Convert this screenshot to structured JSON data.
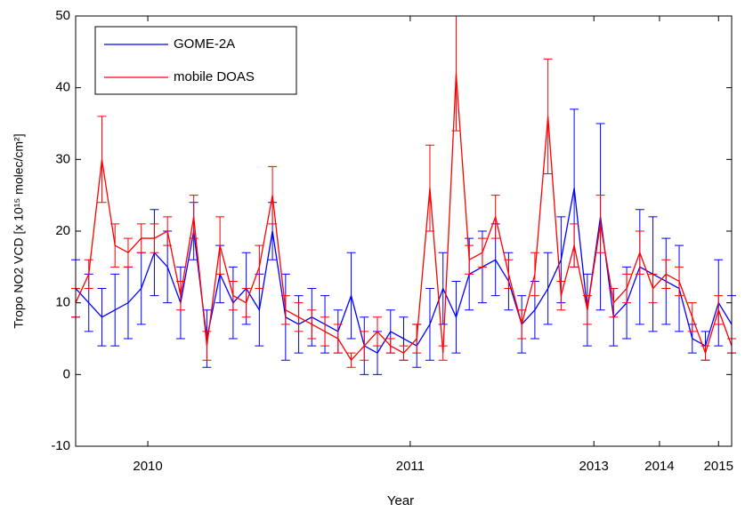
{
  "chart_data": {
    "type": "errorbar-line",
    "x_label": "Year",
    "y_label": "Tropo NO2 VCD [x 10¹⁵ molec/cm²]",
    "xlim": [
      0,
      100
    ],
    "xticks": [
      {
        "value": 11,
        "label": "2010"
      },
      {
        "value": 51,
        "label": "2011"
      },
      {
        "value": 79,
        "label": "2013"
      },
      {
        "value": 89,
        "label": "2014"
      },
      {
        "value": 98,
        "label": "2015"
      }
    ],
    "ylim": [
      -10,
      50
    ],
    "yticks": [
      -10,
      0,
      10,
      20,
      30,
      40,
      50
    ],
    "legend": "upper-left",
    "x": [
      0,
      2,
      4,
      6,
      8,
      10,
      12,
      14,
      16,
      18,
      20,
      22,
      24,
      26,
      28,
      30,
      32,
      34,
      36,
      38,
      40,
      42,
      44,
      46,
      48,
      50,
      52,
      54,
      56,
      58,
      60,
      62,
      64,
      66,
      68,
      70,
      72,
      74,
      76,
      78,
      80,
      82,
      84,
      86,
      88,
      90,
      92,
      94,
      96,
      98,
      100
    ],
    "series": [
      {
        "name": "GOME-2A",
        "color": "#0000ff",
        "values": [
          12,
          10,
          8,
          9,
          10,
          12,
          17,
          15,
          10,
          20,
          5,
          14,
          10,
          12,
          9,
          20,
          8,
          7,
          8,
          7,
          6,
          11,
          4,
          3,
          6,
          5,
          4,
          7,
          12,
          8,
          14,
          15,
          16,
          13,
          7,
          9,
          12,
          16,
          26,
          9,
          22,
          8,
          10,
          15,
          14,
          13,
          12,
          5,
          4,
          10,
          7
        ],
        "errors": [
          4,
          4,
          4,
          5,
          5,
          5,
          6,
          5,
          5,
          4,
          4,
          4,
          5,
          5,
          5,
          4,
          6,
          4,
          4,
          4,
          3,
          6,
          4,
          3,
          3,
          3,
          3,
          5,
          5,
          5,
          5,
          5,
          5,
          4,
          4,
          4,
          5,
          6,
          11,
          5,
          13,
          4,
          5,
          8,
          8,
          6,
          6,
          2,
          2,
          6,
          4
        ]
      },
      {
        "name": "mobile DOAS",
        "color": "#ff0000",
        "values": [
          10,
          14,
          30,
          18,
          17,
          19,
          19,
          20,
          11,
          22,
          4,
          18,
          11,
          10,
          15,
          25,
          9,
          8,
          7,
          6,
          5,
          2,
          4,
          6,
          4,
          3,
          5,
          26,
          3,
          42,
          16,
          17,
          22,
          14,
          7,
          14,
          36,
          11,
          18,
          9,
          21,
          10,
          12,
          17,
          12,
          14,
          13,
          8,
          3,
          9,
          4
        ],
        "errors": [
          2,
          2,
          6,
          3,
          2,
          2,
          2,
          2,
          2,
          3,
          2,
          4,
          2,
          2,
          3,
          4,
          2,
          2,
          2,
          2,
          2,
          1,
          2,
          2,
          1,
          1,
          2,
          6,
          1,
          8,
          2,
          2,
          3,
          2,
          2,
          3,
          8,
          2,
          3,
          2,
          4,
          2,
          2,
          3,
          2,
          2,
          2,
          2,
          1,
          2,
          1
        ]
      }
    ]
  }
}
